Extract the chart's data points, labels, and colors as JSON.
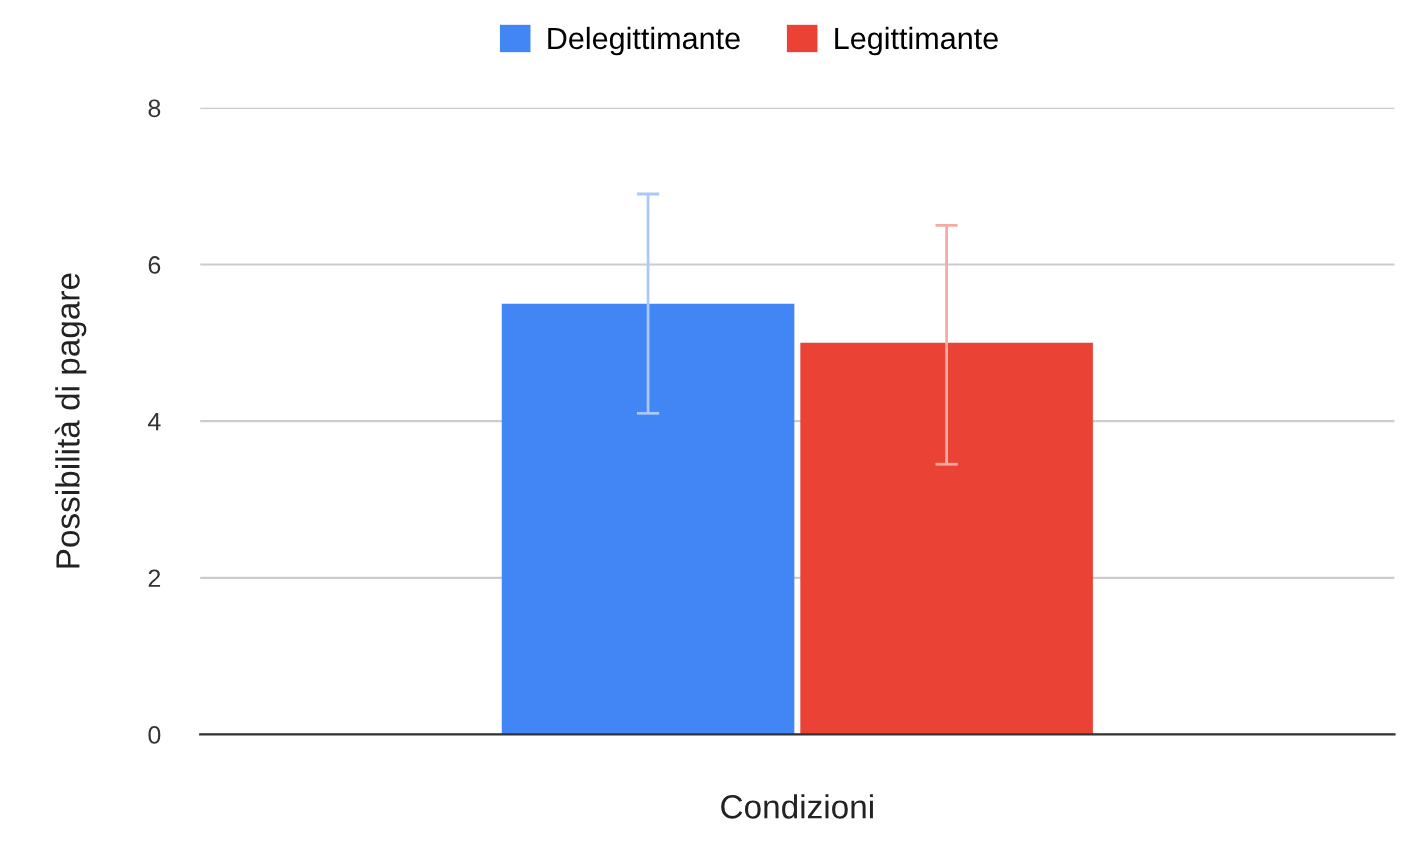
{
  "chart_data": {
    "type": "bar",
    "xlabel": "Condizioni",
    "ylabel": "Possibilità di pagare",
    "categories": [
      null
    ],
    "series": [
      {
        "name": "Delegittimante",
        "color": "#4285f4",
        "values": [
          5.5
        ],
        "errors": [
          [
            4.1,
            6.9
          ]
        ]
      },
      {
        "name": "Legittimante",
        "color": "#ea4335",
        "values": [
          5.0
        ],
        "errors": [
          [
            3.45,
            6.5
          ]
        ]
      }
    ],
    "ylim": [
      0,
      8
    ],
    "yticks": [
      0,
      2,
      4,
      6,
      8
    ],
    "grid": "y",
    "legend": "top"
  }
}
